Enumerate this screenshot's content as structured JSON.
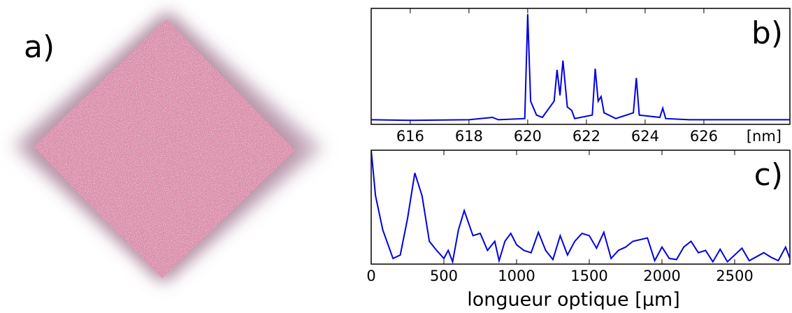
{
  "figure": {
    "panel_a_label": "a)"
  },
  "chart_data": [
    {
      "type": "line",
      "panel_label": "b)",
      "x_unit_label": "[nm]",
      "color": "#0000dd",
      "xlim": [
        614.67,
        628.93
      ],
      "xticks": [
        616,
        618,
        620,
        622,
        624,
        626
      ],
      "ylim": [
        0,
        1
      ],
      "x": [
        614.67,
        616,
        618,
        618.8,
        619,
        619.9,
        620.0,
        620.1,
        620.3,
        620.5,
        620.9,
        621.0,
        621.1,
        621.2,
        621.35,
        621.5,
        621.6,
        622.2,
        622.3,
        622.4,
        622.5,
        622.6,
        623.0,
        623.6,
        623.7,
        623.8,
        624.5,
        624.6,
        624.7,
        625.5,
        628.93
      ],
      "values": [
        0.04,
        0.035,
        0.04,
        0.06,
        0.04,
        0.05,
        0.95,
        0.2,
        0.08,
        0.06,
        0.2,
        0.47,
        0.25,
        0.55,
        0.15,
        0.12,
        0.05,
        0.08,
        0.48,
        0.2,
        0.24,
        0.1,
        0.05,
        0.1,
        0.4,
        0.08,
        0.06,
        0.14,
        0.05,
        0.04,
        0.04
      ]
    },
    {
      "type": "line",
      "panel_label": "c)",
      "xlabel": "longueur optique [µm]",
      "color": "#0000dd",
      "xlim": [
        0,
        2880
      ],
      "xticks": [
        0,
        500,
        1000,
        1500,
        2000,
        2500
      ],
      "ylim": [
        0,
        1
      ],
      "x": [
        0,
        30,
        80,
        150,
        200,
        250,
        300,
        350,
        400,
        450,
        500,
        530,
        560,
        600,
        640,
        700,
        750,
        800,
        850,
        880,
        920,
        960,
        1000,
        1050,
        1100,
        1150,
        1200,
        1250,
        1300,
        1350,
        1400,
        1450,
        1500,
        1550,
        1600,
        1650,
        1700,
        1750,
        1800,
        1900,
        1950,
        2000,
        2050,
        2100,
        2150,
        2200,
        2250,
        2300,
        2350,
        2400,
        2450,
        2550,
        2600,
        2700,
        2750,
        2800,
        2850,
        2880
      ],
      "values": [
        1.0,
        0.6,
        0.3,
        0.05,
        0.08,
        0.4,
        0.8,
        0.6,
        0.2,
        0.12,
        0.05,
        0.12,
        0.02,
        0.3,
        0.47,
        0.25,
        0.27,
        0.12,
        0.2,
        0.03,
        0.2,
        0.27,
        0.17,
        0.12,
        0.1,
        0.28,
        0.12,
        0.04,
        0.25,
        0.08,
        0.2,
        0.27,
        0.25,
        0.14,
        0.28,
        0.05,
        0.12,
        0.15,
        0.2,
        0.23,
        0.03,
        0.15,
        0.05,
        0.04,
        0.15,
        0.2,
        0.1,
        0.12,
        0.02,
        0.13,
        0.02,
        0.14,
        0.03,
        0.1,
        0.06,
        0.03,
        0.15,
        0.05
      ]
    }
  ]
}
